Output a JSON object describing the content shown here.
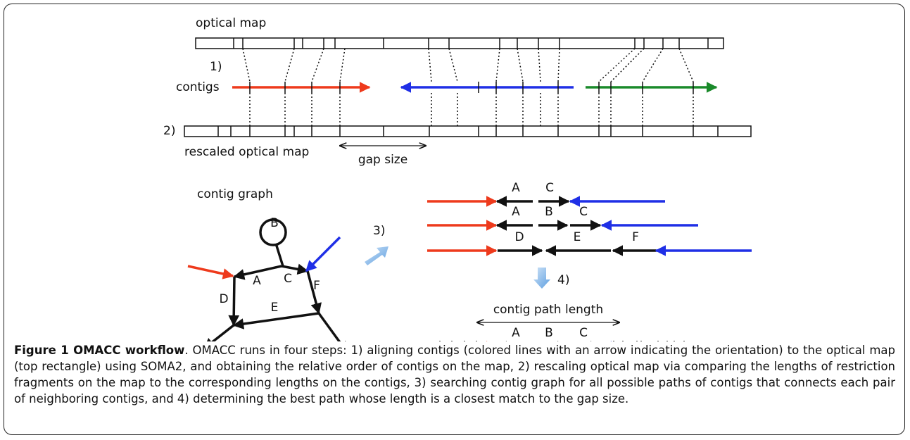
{
  "step1": {
    "map_label": "optical map",
    "step": "1)",
    "contigs_label": "contigs"
  },
  "step2": {
    "step": "2)",
    "map_label": "rescaled optical map",
    "gap_label": "gap size"
  },
  "graph": {
    "title": "contig graph",
    "nodes": [
      "A",
      "B",
      "C",
      "D",
      "E",
      "F"
    ]
  },
  "step3": {
    "step": "3)",
    "paths": [
      [
        "A",
        "C"
      ],
      [
        "A",
        "B",
        "C"
      ],
      [
        "D",
        "E",
        "F"
      ]
    ]
  },
  "step4": {
    "step": "4)",
    "length_label": "contig path length",
    "path": [
      "A",
      "B",
      "C"
    ]
  },
  "caption": {
    "title": "Figure 1 OMACC workflow",
    "text": ". OMACC runs in four steps: 1) aligning contigs (colored lines with an arrow indicating the orientation) to the optical map (top rectangle) using SOMA2, and obtaining the relative order of contigs on the map, 2) rescaling optical map via comparing the lengths of restriction fragments on the map to the corresponding lengths on the contigs, 3) searching contig graph for all possible paths of contigs that connects each pair of neighboring contigs, and 4) determining the best path whose length is a closest match to the gap size."
  }
}
